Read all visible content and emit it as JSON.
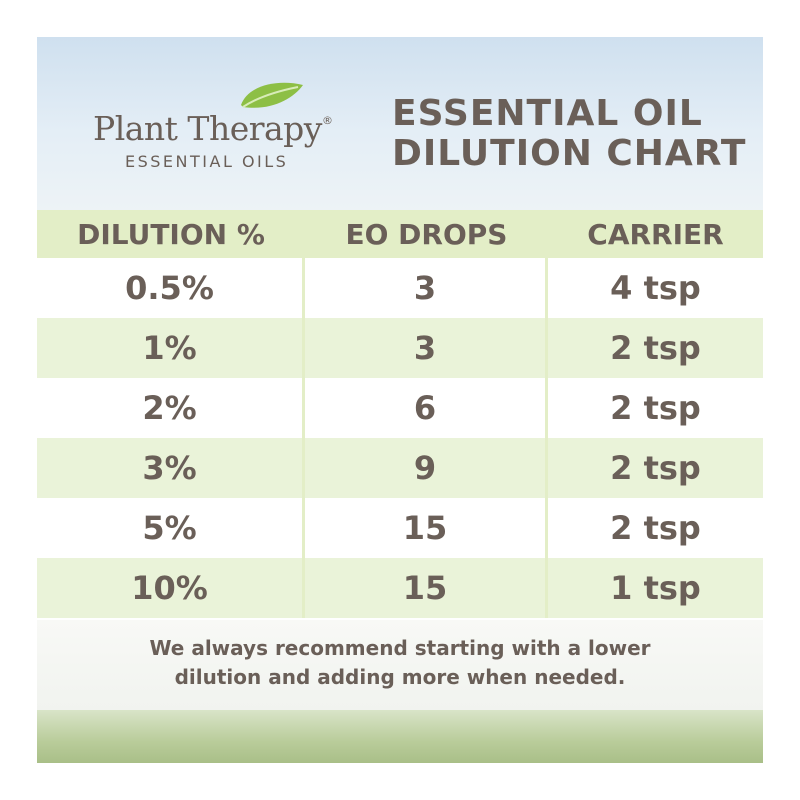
{
  "header": {
    "brand": "Plant Therapy",
    "brand_mark": "®",
    "brand_sub": "ESSENTIAL OILS",
    "title_lines": [
      "ESSENTIAL OIL",
      "DILUTION CHART"
    ]
  },
  "table": {
    "columns": [
      "DILUTION %",
      "EO DROPS",
      "CARRIER"
    ],
    "rows": [
      [
        "0.5%",
        "3",
        "4 tsp"
      ],
      [
        "1%",
        "3",
        "2 tsp"
      ],
      [
        "2%",
        "6",
        "2 tsp"
      ],
      [
        "3%",
        "9",
        "2 tsp"
      ],
      [
        "5%",
        "15",
        "2 tsp"
      ],
      [
        "10%",
        "15",
        "1 tsp"
      ]
    ]
  },
  "footer": {
    "note_lines": [
      "We always recommend starting with a lower",
      "dilution and adding more when needed."
    ]
  }
}
